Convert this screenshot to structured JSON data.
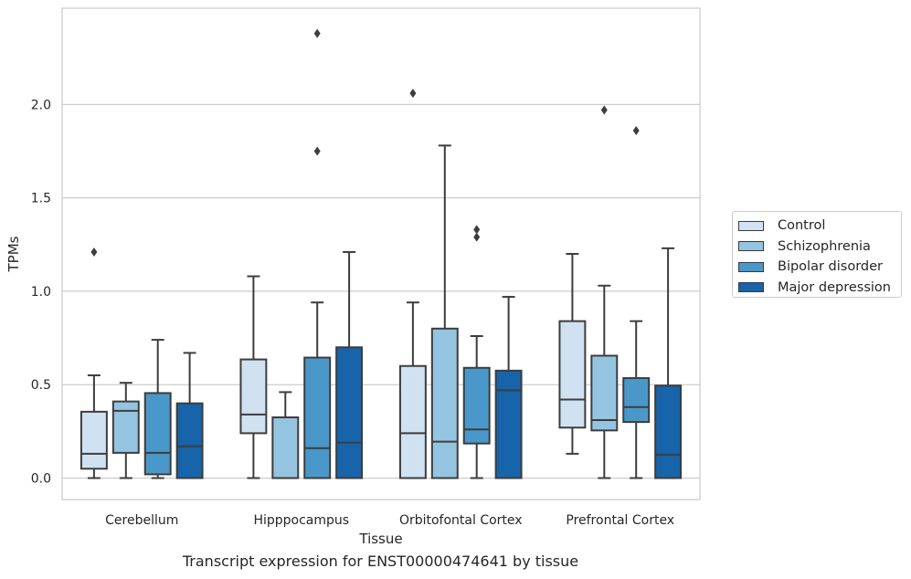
{
  "chart_data": {
    "type": "boxplot",
    "xlabel": "Tissue",
    "ylabel": "TPMs",
    "caption": "Transcript expression for ENST00000474641 by tissue",
    "categories": [
      "Cerebellum",
      "Hipppocampus",
      "Orbitofontal Cortex",
      "Prefrontal Cortex"
    ],
    "ylim": [
      -0.115,
      2.515
    ],
    "yticks": [
      0.0,
      0.5,
      1.0,
      1.5,
      2.0
    ],
    "ytick_labels": [
      "0.0",
      "0.5",
      "1.0",
      "1.5",
      "2.0"
    ],
    "grid": "horizontal",
    "legend_placement": "right",
    "series": [
      {
        "name": "Control",
        "color": "#d0e1f2",
        "boxes": [
          {
            "whisker_low": 0.0,
            "q1": 0.05,
            "median": 0.13,
            "q3": 0.355,
            "whisker_high": 0.55,
            "outliers": [
              1.21
            ]
          },
          {
            "whisker_low": 0.0,
            "q1": 0.24,
            "median": 0.34,
            "q3": 0.635,
            "whisker_high": 1.08,
            "outliers": []
          },
          {
            "whisker_low": 0.0,
            "q1": 0.0,
            "median": 0.24,
            "q3": 0.6,
            "whisker_high": 0.94,
            "outliers": [
              2.06
            ]
          },
          {
            "whisker_low": 0.13,
            "q1": 0.27,
            "median": 0.42,
            "q3": 0.84,
            "whisker_high": 1.2,
            "outliers": []
          }
        ]
      },
      {
        "name": "Schizophrenia",
        "color": "#94c4df",
        "boxes": [
          {
            "whisker_low": 0.0,
            "q1": 0.135,
            "median": 0.36,
            "q3": 0.41,
            "whisker_high": 0.51,
            "outliers": []
          },
          {
            "whisker_low": 0.0,
            "q1": 0.0,
            "median": 0.0,
            "q3": 0.325,
            "whisker_high": 0.46,
            "outliers": []
          },
          {
            "whisker_low": 0.0,
            "q1": 0.0,
            "median": 0.195,
            "q3": 0.8,
            "whisker_high": 1.78,
            "outliers": []
          },
          {
            "whisker_low": 0.0,
            "q1": 0.255,
            "median": 0.31,
            "q3": 0.655,
            "whisker_high": 1.03,
            "outliers": [
              1.97
            ]
          }
        ]
      },
      {
        "name": "Bipolar disorder",
        "color": "#4a98c9",
        "boxes": [
          {
            "whisker_low": 0.0,
            "q1": 0.02,
            "median": 0.135,
            "q3": 0.455,
            "whisker_high": 0.74,
            "outliers": []
          },
          {
            "whisker_low": 0.0,
            "q1": 0.0,
            "median": 0.16,
            "q3": 0.645,
            "whisker_high": 0.94,
            "outliers": [
              1.75,
              2.38
            ]
          },
          {
            "whisker_low": 0.0,
            "q1": 0.185,
            "median": 0.26,
            "q3": 0.59,
            "whisker_high": 0.76,
            "outliers": [
              1.29,
              1.33
            ]
          },
          {
            "whisker_low": 0.0,
            "q1": 0.3,
            "median": 0.38,
            "q3": 0.535,
            "whisker_high": 0.84,
            "outliers": [
              1.86
            ]
          }
        ]
      },
      {
        "name": "Major depression",
        "color": "#1764ab",
        "boxes": [
          {
            "whisker_low": 0.0,
            "q1": 0.0,
            "median": 0.17,
            "q3": 0.4,
            "whisker_high": 0.67,
            "outliers": []
          },
          {
            "whisker_low": 0.0,
            "q1": 0.0,
            "median": 0.19,
            "q3": 0.7,
            "whisker_high": 1.21,
            "outliers": []
          },
          {
            "whisker_low": 0.0,
            "q1": 0.0,
            "median": 0.47,
            "q3": 0.575,
            "whisker_high": 0.97,
            "outliers": []
          },
          {
            "whisker_low": 0.0,
            "q1": 0.0,
            "median": 0.125,
            "q3": 0.495,
            "whisker_high": 1.23,
            "outliers": []
          }
        ]
      }
    ]
  }
}
